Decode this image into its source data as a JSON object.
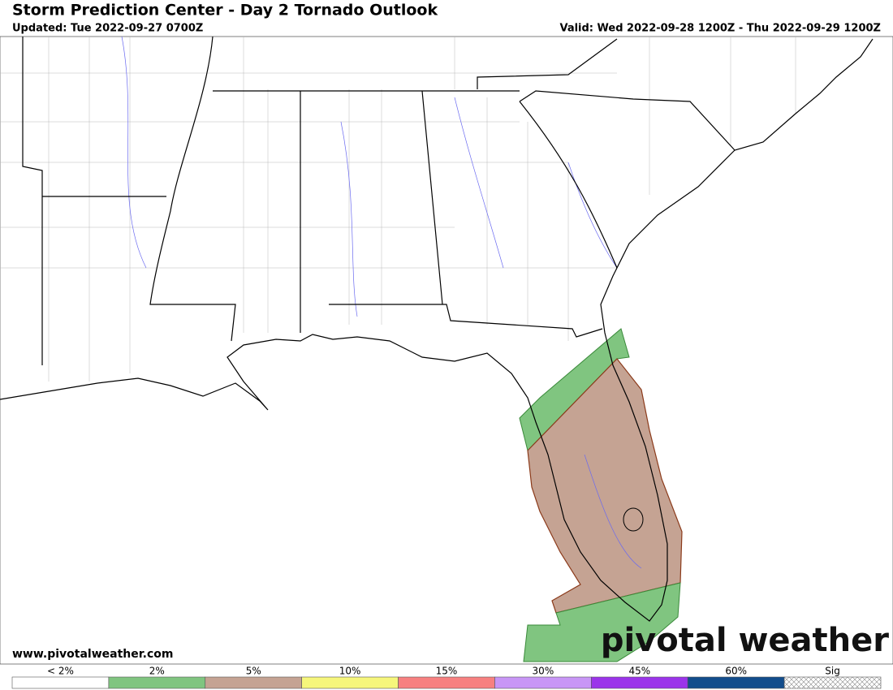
{
  "header": {
    "title": "Storm Prediction Center - Day 2 Tornado Outlook",
    "updated": "Updated: Tue 2022-09-27 0700Z",
    "valid": "Valid: Wed 2022-09-28 1200Z - Thu 2022-09-29 1200Z"
  },
  "footer": {
    "website": "www.pivotalweather.com",
    "logo": "pivotal weather"
  },
  "legend": {
    "items": [
      {
        "label": "< 2%",
        "color": "#ffffff"
      },
      {
        "label": "2%",
        "color": "#80c580"
      },
      {
        "label": "5%",
        "color": "#c5a393"
      },
      {
        "label": "10%",
        "color": "#f6f67b"
      },
      {
        "label": "15%",
        "color": "#f78080"
      },
      {
        "label": "30%",
        "color": "#c896f6"
      },
      {
        "label": "45%",
        "color": "#9b34ea"
      },
      {
        "label": "60%",
        "color": "#124d8c"
      },
      {
        "label": "Sig"
      }
    ]
  }
}
